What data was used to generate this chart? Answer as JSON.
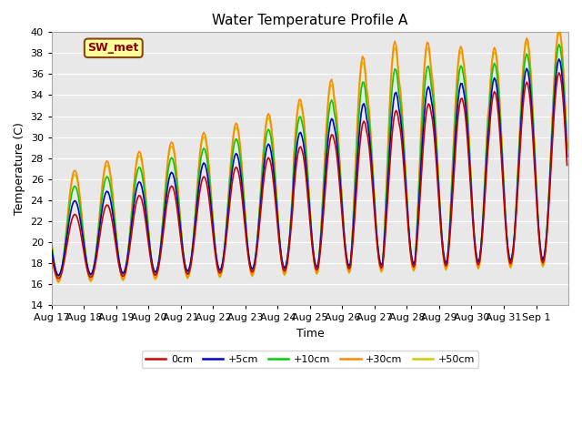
{
  "title": "Water Temperature Profile A",
  "xlabel": "Time",
  "ylabel": "Temperature (C)",
  "ylim": [
    14,
    40
  ],
  "yticks": [
    14,
    16,
    18,
    20,
    22,
    24,
    26,
    28,
    30,
    32,
    34,
    36,
    38,
    40
  ],
  "annotation": "SW_met",
  "annotation_color": "#8B0000",
  "annotation_bg": "#FFFF99",
  "bg_color": "#E8E8E8",
  "line_colors": {
    "0cm": "#CC0000",
    "+5cm": "#0000CC",
    "+10cm": "#00CC00",
    "+30cm": "#FF8800",
    "+50cm": "#CCCC00"
  },
  "legend_labels": [
    "0cm",
    "+5cm",
    "+10cm",
    "+30cm",
    "+50cm"
  ],
  "xtick_labels": [
    "Aug 17",
    "Aug 18",
    "Aug 19",
    "Aug 20",
    "Aug 21",
    "Aug 22",
    "Aug 23",
    "Aug 24",
    "Aug 25",
    "Aug 26",
    "Aug 27",
    "Aug 28",
    "Aug 29",
    "Aug 30",
    "Aug 31",
    "Sep 1"
  ]
}
